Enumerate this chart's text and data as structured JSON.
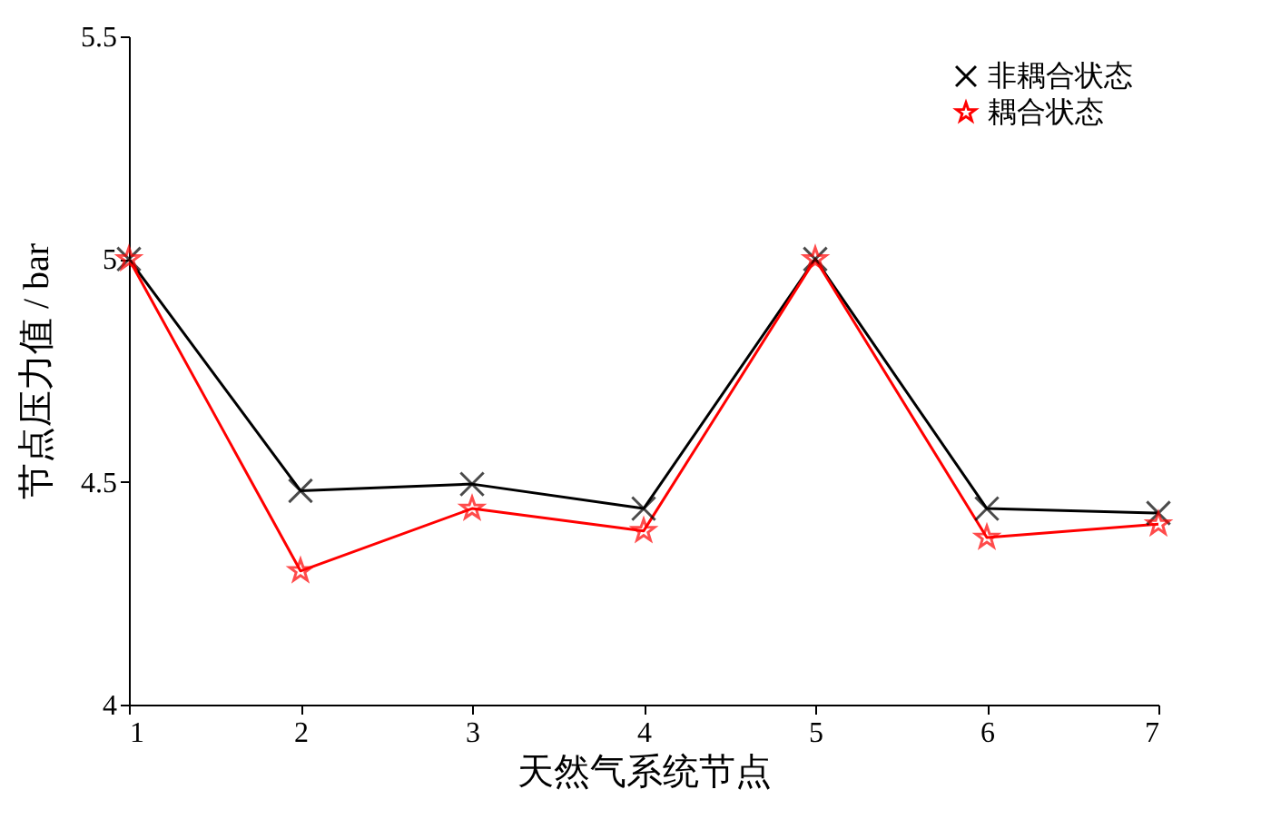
{
  "chart_data": {
    "type": "line",
    "xlabel": "天然气系统节点",
    "ylabel": "节点压力值 / bar",
    "x": [
      1,
      2,
      3,
      4,
      5,
      6,
      7
    ],
    "xlim": [
      1,
      7
    ],
    "xticks": [
      1,
      2,
      3,
      4,
      5,
      6,
      7
    ],
    "ylim": [
      4,
      5.5
    ],
    "yticks": [
      4,
      4.5,
      5,
      5.5
    ],
    "legend": "top right",
    "grid": false,
    "line_style": "solid",
    "series": [
      {
        "name": "非耦合状态",
        "color": "#000000",
        "marker": "cross",
        "values": [
          5.0,
          4.48,
          4.495,
          4.44,
          5.0,
          4.44,
          4.43
        ]
      },
      {
        "name": "耦合状态",
        "color": "#ff0000",
        "marker": "star",
        "values": [
          5.0,
          4.3,
          4.44,
          4.39,
          5.0,
          4.375,
          4.405
        ]
      }
    ]
  }
}
